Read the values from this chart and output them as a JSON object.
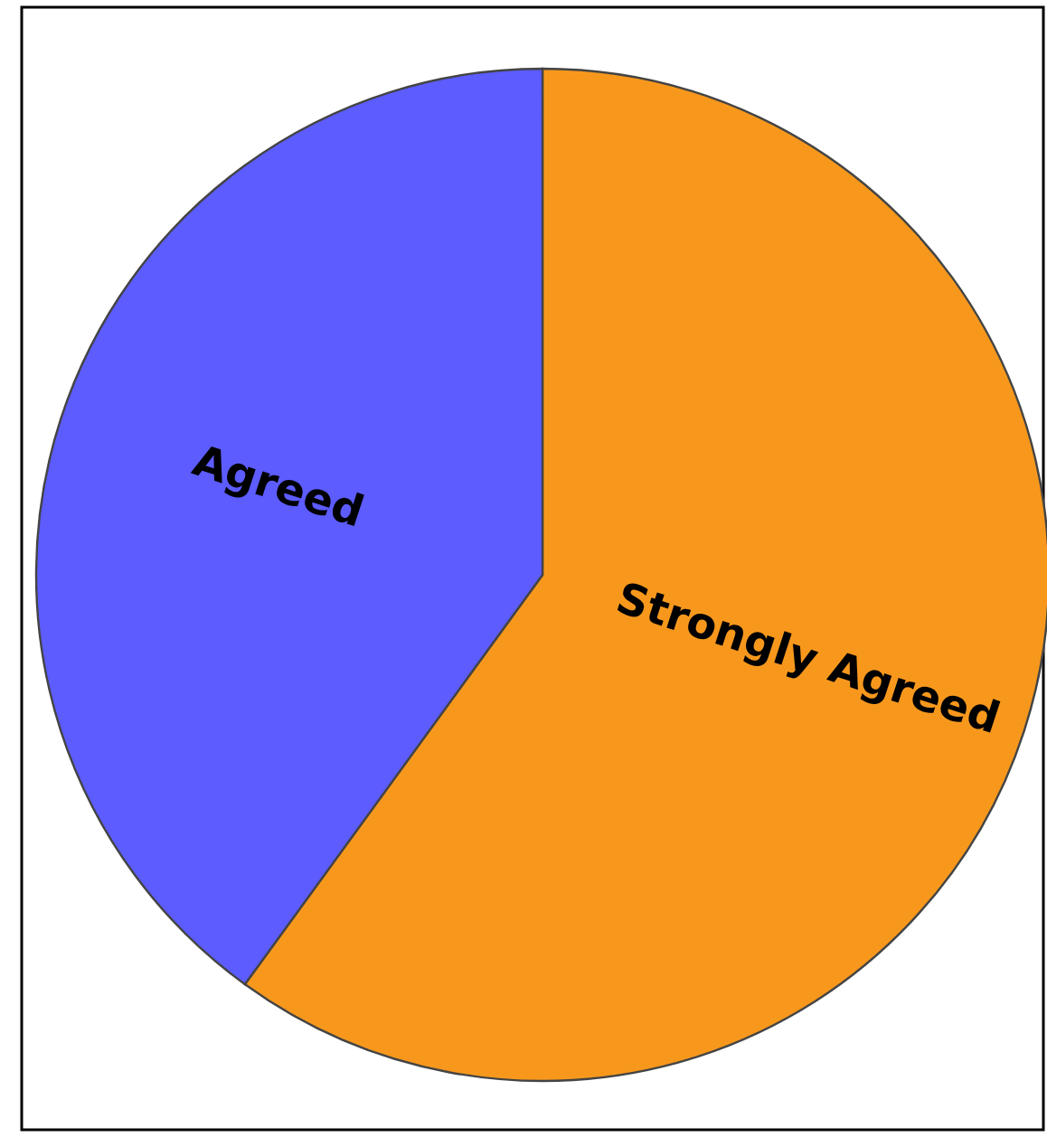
{
  "chart_data": {
    "type": "pie",
    "categories": [
      "Strongly Agreed",
      "Agreed"
    ],
    "values": [
      60,
      40
    ],
    "colors": [
      "#f7981d",
      "#5c5cff"
    ]
  }
}
